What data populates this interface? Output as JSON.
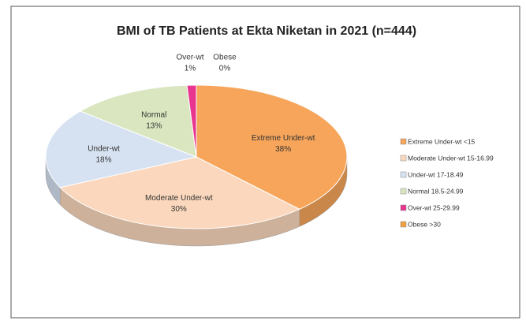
{
  "chart_data": {
    "type": "pie3d",
    "title": "BMI of TB Patients at Ekta Niketan in 2021 (n=444)",
    "categories": [
      "Extreme Under-wt",
      "Moderate Under-wt",
      "Under-wt",
      "Normal",
      "Over-wt",
      "Obese"
    ],
    "legend_labels": [
      "Extreme Under-wt <15",
      "Moderate Under-wt 15-16.99",
      "Under-wt 17-18.49",
      "Normal 18.5-24.99",
      "Over-wt 25-29.99",
      "Obese >30"
    ],
    "values": [
      38,
      30,
      18,
      13,
      1,
      0
    ],
    "value_labels": [
      "38%",
      "30%",
      "18%",
      "13%",
      "1%",
      "0%"
    ],
    "colors": [
      "#f6a55a",
      "#fbd8bd",
      "#d6e2f1",
      "#d9e6bf",
      "#e8358f",
      "#f0a040"
    ],
    "legend": "right"
  }
}
